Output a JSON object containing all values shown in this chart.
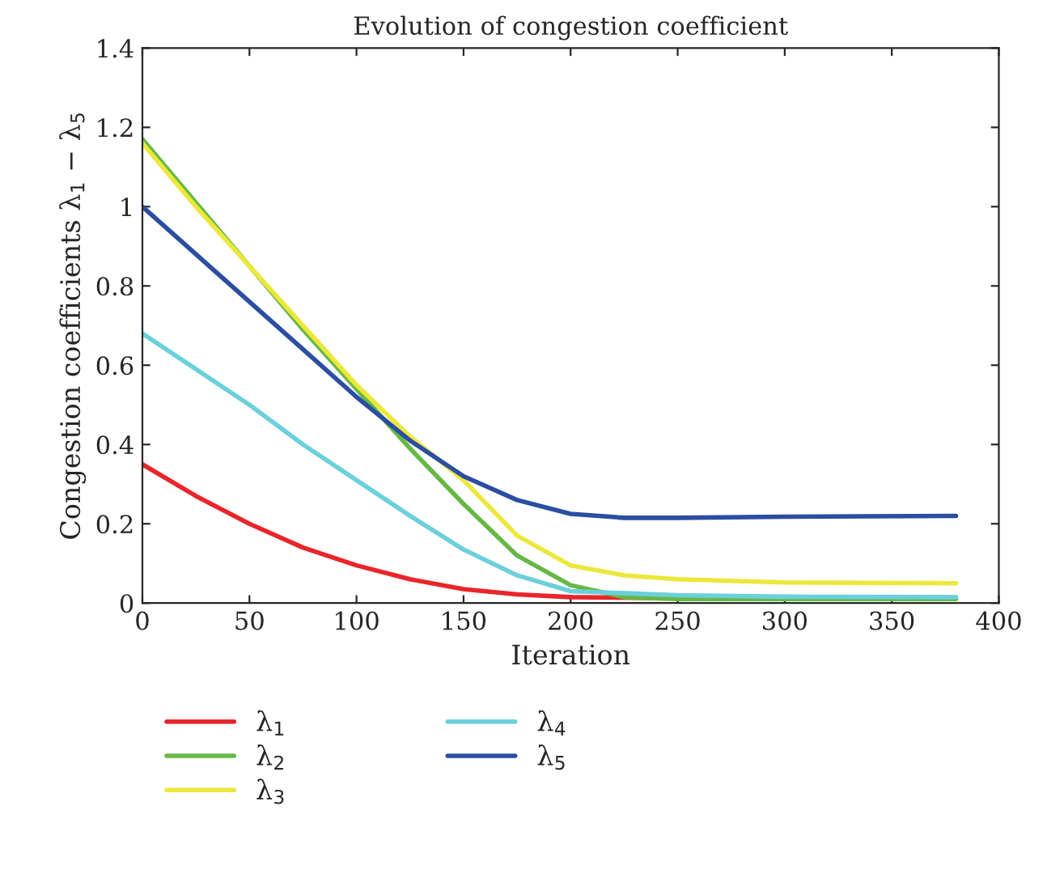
{
  "chart_data": {
    "type": "line",
    "title": "Evolution of congestion coefficient",
    "xlabel": "Iteration",
    "ylabel": "Congestion coefficients λ$_{1}$ − λ$_{5}$",
    "xlim": [
      0,
      400
    ],
    "xticks": [
      0,
      50,
      100,
      150,
      200,
      250,
      300,
      350,
      400
    ],
    "ylim": [
      0,
      1.4
    ],
    "yticks": [
      0,
      0.2,
      0.4,
      0.6,
      0.8,
      1,
      1.2,
      1.4
    ],
    "grid": false,
    "legend": "bottom",
    "line_style": "solid",
    "series": [
      {
        "name": "λ$_{1}$",
        "color": "#e8262a",
        "x": [
          0,
          25,
          50,
          75,
          100,
          125,
          150,
          175,
          200,
          250
        ],
        "values": [
          0.35,
          0.27,
          0.2,
          0.14,
          0.095,
          0.06,
          0.035,
          0.022,
          0.015,
          0.012
        ]
      },
      {
        "name": "λ$_{2}$",
        "color": "#66b845",
        "x": [
          0,
          25,
          50,
          75,
          100,
          125,
          150,
          175,
          200,
          225,
          250,
          300,
          380
        ],
        "values": [
          1.17,
          1.01,
          0.85,
          0.69,
          0.54,
          0.39,
          0.25,
          0.12,
          0.045,
          0.015,
          0.01,
          0.01,
          0.01
        ]
      },
      {
        "name": "λ$_{3}$",
        "color": "#ece83a",
        "x": [
          0,
          25,
          50,
          75,
          100,
          125,
          150,
          175,
          200,
          225,
          250,
          300,
          380
        ],
        "values": [
          1.16,
          1.0,
          0.85,
          0.7,
          0.55,
          0.42,
          0.31,
          0.17,
          0.095,
          0.07,
          0.06,
          0.052,
          0.05
        ]
      },
      {
        "name": "λ$_{4}$",
        "color": "#6ccfdc",
        "x": [
          0,
          25,
          50,
          75,
          100,
          125,
          150,
          175,
          200,
          250,
          300,
          380
        ],
        "values": [
          0.68,
          0.59,
          0.5,
          0.4,
          0.31,
          0.22,
          0.135,
          0.07,
          0.03,
          0.02,
          0.016,
          0.015
        ]
      },
      {
        "name": "λ$_{5}$",
        "color": "#2b4ea2",
        "x": [
          0,
          25,
          50,
          75,
          100,
          125,
          150,
          175,
          200,
          225,
          250,
          300,
          380
        ],
        "values": [
          1.0,
          0.88,
          0.76,
          0.64,
          0.52,
          0.41,
          0.32,
          0.26,
          0.225,
          0.215,
          0.215,
          0.218,
          0.22
        ]
      }
    ]
  }
}
